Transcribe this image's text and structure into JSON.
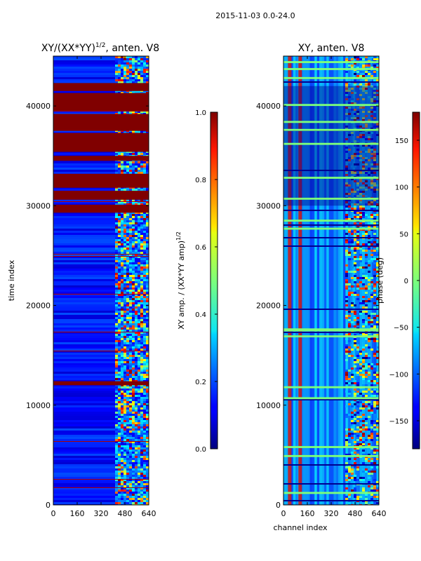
{
  "suptitle": "2015-11-03 0.0-24.0",
  "chart_data": [
    {
      "type": "heatmap",
      "title_main": "XY/(XX*YY)",
      "title_exp": "1/2",
      "title_tail": ", anten. V8",
      "xlabel": "",
      "ylabel": "time index",
      "xlim": [
        0,
        640
      ],
      "ylim": [
        0,
        45000
      ],
      "xticks": [
        "0",
        "160",
        "320",
        "480",
        "640"
      ],
      "yticks": [
        "0",
        "10000",
        "20000",
        "30000",
        "40000"
      ],
      "colorbar": {
        "label_main": "XY amp. / (XX*YY amp)",
        "label_exp": "1/2",
        "range": [
          0.0,
          1.0
        ],
        "ticks": [
          "0.0",
          "0.2",
          "0.4",
          "0.6",
          "0.8",
          "1.0"
        ]
      },
      "saturated_bands": [
        [
          41500,
          42300
        ],
        [
          39500,
          41300
        ],
        [
          37500,
          39200
        ],
        [
          35400,
          37300
        ],
        [
          34500,
          35000
        ],
        [
          31800,
          33200
        ],
        [
          30600,
          31500
        ],
        [
          29300,
          30100
        ],
        [
          12000,
          12400
        ]
      ]
    },
    {
      "type": "heatmap",
      "title": "XY, anten. V8",
      "xlabel": "channel index",
      "ylabel": "",
      "xlim": [
        0,
        640
      ],
      "ylim": [
        0,
        45000
      ],
      "xticks": [
        "0",
        "160",
        "320",
        "480",
        "640"
      ],
      "yticks": [
        "0",
        "10000",
        "20000",
        "30000",
        "40000"
      ],
      "colorbar": {
        "label": "phase (deg)",
        "range": [
          -180,
          180
        ],
        "ticks": [
          "−150",
          "−100",
          "−50",
          "0",
          "50",
          "100",
          "150"
        ]
      },
      "green_bands": [
        [
          44300,
          44500
        ],
        [
          43600,
          43800
        ],
        [
          42700,
          42900
        ],
        [
          40000,
          40200
        ],
        [
          38300,
          38500
        ],
        [
          37500,
          37700
        ],
        [
          36100,
          36300
        ],
        [
          32700,
          32900
        ],
        [
          30600,
          30800
        ],
        [
          28400,
          28600
        ],
        [
          27600,
          27800
        ],
        [
          17400,
          17700
        ],
        [
          16800,
          17000
        ],
        [
          11700,
          11900
        ],
        [
          10600,
          10800
        ],
        [
          5700,
          5900
        ],
        [
          4800,
          5000
        ],
        [
          1100,
          1300
        ]
      ]
    }
  ],
  "colors": {
    "dark_red": "#800000",
    "dark_blue": "#00008f",
    "green": "#7dff7a"
  }
}
